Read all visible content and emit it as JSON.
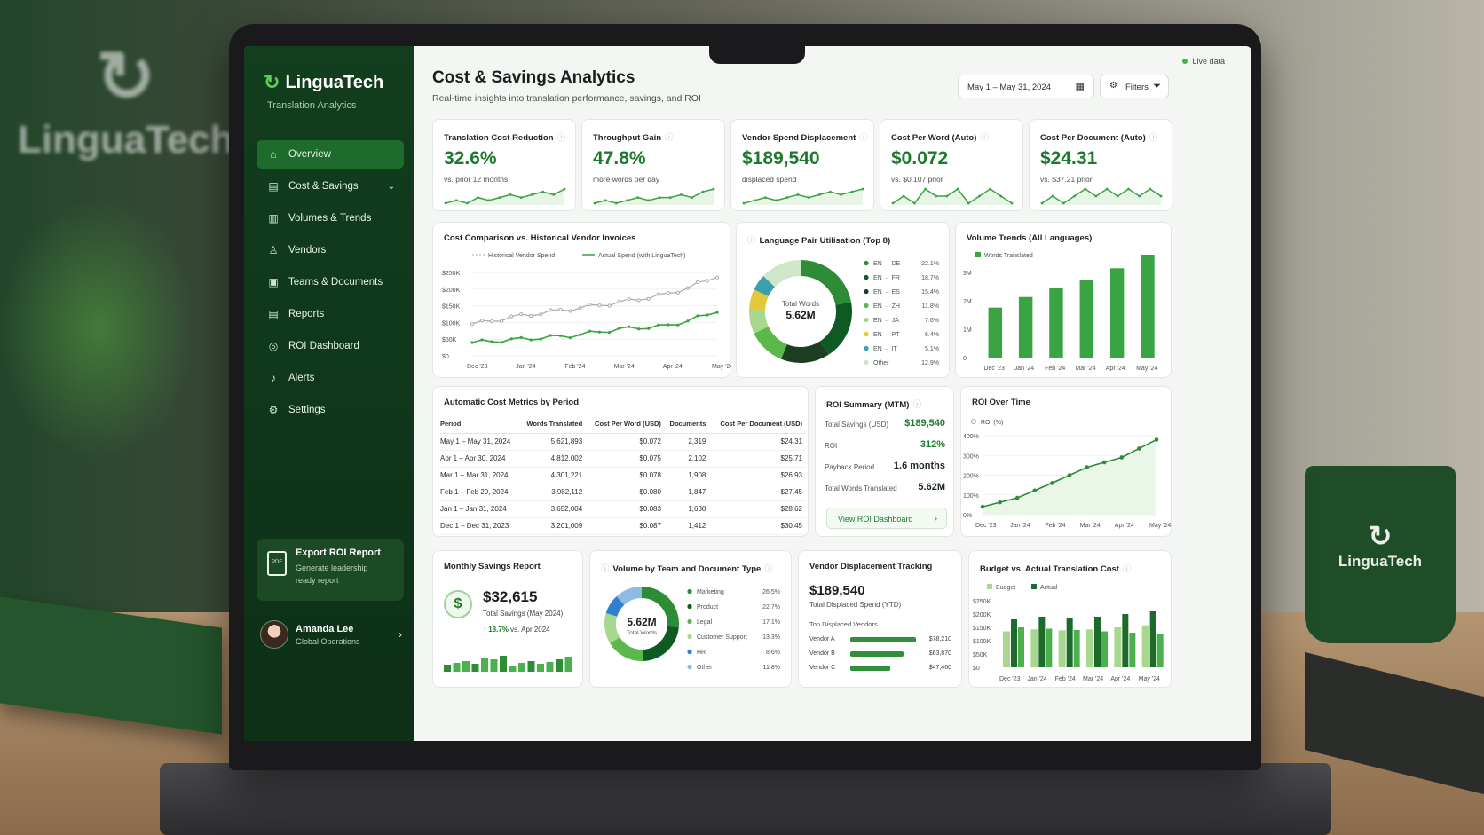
{
  "scene": {
    "wall_logo": "LinguaTech",
    "mug_logo": "LinguaTech"
  },
  "colors": {
    "brand_green": "#1d7a2d",
    "sidebar": "#123e1d",
    "accent_light": "#5fcf5a",
    "grey_series": "#a8aca8"
  },
  "sidebar": {
    "brand": "LinguaTech",
    "brand_sub": "Translation Analytics",
    "items": [
      {
        "label": "Overview",
        "icon": "home-icon",
        "active": true
      },
      {
        "label": "Cost & Savings",
        "icon": "document-icon",
        "has_chevron": true
      },
      {
        "label": "Volumes & Trends",
        "icon": "bar-chart-icon"
      },
      {
        "label": "Vendors",
        "icon": "users-icon"
      },
      {
        "label": "Teams & Documents",
        "icon": "folder-icon"
      },
      {
        "label": "Reports",
        "icon": "report-icon"
      },
      {
        "label": "ROI Dashboard",
        "icon": "roi-icon"
      },
      {
        "label": "Alerts",
        "icon": "bell-icon"
      },
      {
        "label": "Settings",
        "icon": "gear-icon"
      }
    ],
    "export": {
      "title": "Export ROI Report",
      "line1": "Generate leadership",
      "line2": "ready report",
      "icon_text": "PDF"
    },
    "user": {
      "name": "Amanda Lee",
      "role": "Global Operations"
    }
  },
  "header": {
    "title": "Cost & Savings Analytics",
    "subtitle": "Real-time insights into translation performance, savings, and ROI",
    "live": "Live data",
    "date_range": "May 1 – May 31, 2024",
    "filters": "Filters"
  },
  "kpis": [
    {
      "title": "Translation Cost Reduction",
      "value": "32.6%",
      "note": "vs. prior 12 months",
      "trend": [
        3,
        4,
        3,
        5,
        4,
        5,
        6,
        5,
        6,
        7,
        6,
        8
      ]
    },
    {
      "title": "Throughput Gain",
      "value": "47.8%",
      "note": "more words per day",
      "trend": [
        3,
        4,
        3,
        4,
        5,
        4,
        5,
        5,
        6,
        5,
        7,
        8
      ]
    },
    {
      "title": "Vendor Spend Displacement",
      "value": "$189,540",
      "note": "displaced spend",
      "trend": [
        3,
        4,
        5,
        4,
        5,
        6,
        5,
        6,
        7,
        6,
        7,
        8
      ]
    },
    {
      "title": "Cost Per Word (Auto)",
      "value": "$0.072",
      "note": "vs. $0.107 prior",
      "trend": [
        4,
        5,
        4,
        6,
        5,
        5,
        6,
        4,
        5,
        6,
        5,
        4
      ]
    },
    {
      "title": "Cost Per Document (Auto)",
      "value": "$24.31",
      "note": "vs. $37.21 prior",
      "trend": [
        4,
        5,
        4,
        5,
        6,
        5,
        6,
        5,
        6,
        5,
        6,
        5
      ]
    }
  ],
  "cost_chart": {
    "title": "Cost Comparison vs. Historical Vendor Invoices",
    "legend_hist": "Historical Vendor Spend",
    "legend_actual": "Actual Spend (with LinguaTech)",
    "y_ticks": [
      "$250K",
      "$200K",
      "$150K",
      "$100K",
      "$50K",
      "$0"
    ],
    "x_ticks": [
      "Dec '23",
      "Jan '24",
      "Feb '24",
      "Mar '24",
      "Apr '24",
      "May '24"
    ]
  },
  "language_pairs": {
    "title": "Language Pair Utilisation (Top 8)",
    "center_label": "Total Words",
    "center_value": "5.62M",
    "items": [
      {
        "label": "EN → DE",
        "pct": "22.1%",
        "color": "#2e8b36"
      },
      {
        "label": "EN → FR",
        "pct": "18.7%",
        "color": "#0f5a22"
      },
      {
        "label": "EN → ES",
        "pct": "15.4%",
        "color": "#1e3e24"
      },
      {
        "label": "EN → ZH",
        "pct": "11.8%",
        "color": "#5cb84a"
      },
      {
        "label": "EN → JA",
        "pct": "7.6%",
        "color": "#a8d88f"
      },
      {
        "label": "EN → PT",
        "pct": "6.4%",
        "color": "#e3c93a"
      },
      {
        "label": "EN → IT",
        "pct": "5.1%",
        "color": "#3c9fb0"
      },
      {
        "label": "Other",
        "pct": "12.9%",
        "color": "#cfe6c8"
      }
    ]
  },
  "volume_chart": {
    "title": "Volume Trends (All Languages)",
    "legend": "Words Translated",
    "y_ticks": [
      "3M",
      "2M",
      "1M",
      "0"
    ],
    "x_ticks": [
      "Dec '23",
      "Jan '24",
      "Feb '24",
      "Mar '24",
      "Apr '24",
      "May '24"
    ]
  },
  "metrics_table": {
    "title": "Automatic Cost Metrics by Period",
    "columns": [
      "Period",
      "Words Translated",
      "Cost Per Word (USD)",
      "Documents",
      "Cost Per Document (USD)"
    ],
    "rows": [
      [
        "May 1 – May 31, 2024",
        "5,621,893",
        "$0.072",
        "2,319",
        "$24.31"
      ],
      [
        "Apr 1 – Apr 30, 2024",
        "4,812,002",
        "$0.075",
        "2,102",
        "$25.71"
      ],
      [
        "Mar 1 – Mar 31, 2024",
        "4,301,221",
        "$0.078",
        "1,908",
        "$26.93"
      ],
      [
        "Feb 1 – Feb 29, 2024",
        "3,982,112",
        "$0.080",
        "1,847",
        "$27.45"
      ],
      [
        "Jan 1 – Jan 31, 2024",
        "3,652,004",
        "$0.083",
        "1,630",
        "$28.62"
      ],
      [
        "Dec 1 – Dec 31, 2023",
        "3,201,009",
        "$0.087",
        "1,412",
        "$30.45"
      ]
    ]
  },
  "roi_summary": {
    "title": "ROI Summary (MTM)",
    "rows": [
      {
        "label": "Total Savings (USD)",
        "value": "$189,540"
      },
      {
        "label": "ROI",
        "value": "312%"
      },
      {
        "label": "Payback Period",
        "value": "1.6 months"
      },
      {
        "label": "Total Words Translated",
        "value": "5.62M"
      }
    ],
    "button": "View ROI Dashboard"
  },
  "roi_time": {
    "title": "ROI Over Time",
    "legend": "ROI (%)",
    "y_ticks": [
      "400%",
      "300%",
      "200%",
      "100%",
      "0%"
    ],
    "x_ticks": [
      "Dec '23",
      "Jan '24",
      "Feb '24",
      "Mar '24",
      "Apr '24",
      "May '24"
    ]
  },
  "monthly_savings": {
    "title": "Monthly Savings Report",
    "icon": "$",
    "value": "$32,615",
    "sub": "Total Savings (May 2024)",
    "change": "18.7%",
    "change_suffix": "vs. Apr 2024"
  },
  "team_volume": {
    "title": "Volume by Team and Document Type",
    "center_value": "5.62M",
    "center_label": "Total Words",
    "items": [
      {
        "label": "Marketing",
        "pct": "26.5%",
        "color": "#2e8b36"
      },
      {
        "label": "Product",
        "pct": "22.7%",
        "color": "#0f5a22"
      },
      {
        "label": "Legal",
        "pct": "17.1%",
        "color": "#5cb84a"
      },
      {
        "label": "Customer Support",
        "pct": "13.3%",
        "color": "#a8d88f"
      },
      {
        "label": "HR",
        "pct": "8.6%",
        "color": "#2f7fd1"
      },
      {
        "label": "Other",
        "pct": "11.8%",
        "color": "#8fb9e6"
      }
    ]
  },
  "vendor_displacement": {
    "title": "Vendor Displacement Tracking",
    "value": "$189,540",
    "sub": "Total Displaced Spend (YTD)",
    "top_label": "Top Displaced Vendors",
    "vendors": [
      {
        "name": "Vendor A",
        "amount": "$78,210",
        "value": 78210
      },
      {
        "name": "Vendor B",
        "amount": "$63,870",
        "value": 63870
      },
      {
        "name": "Vendor C",
        "amount": "$47,460",
        "value": 47460
      }
    ]
  },
  "budget_chart": {
    "title": "Budget vs. Actual Translation Cost",
    "legend_budget": "Budget",
    "legend_actual": "Actual",
    "y_ticks": [
      "$250K",
      "$200K",
      "$150K",
      "$100K",
      "$50K",
      "$0"
    ],
    "x_ticks": [
      "Dec '23",
      "Jan '24",
      "Feb '24",
      "Mar '24",
      "Apr '24",
      "May '24"
    ]
  },
  "chart_data": [
    {
      "type": "line",
      "title": "Cost Comparison vs. Historical Vendor Invoices",
      "x": [
        "Dec '23",
        "Jan '24",
        "Feb '24",
        "Mar '24",
        "Apr '24",
        "May '24"
      ],
      "series": [
        {
          "name": "Historical Vendor Spend",
          "values": [
            95000,
            120000,
            140000,
            160000,
            185000,
            235000
          ]
        },
        {
          "name": "Actual Spend (with LinguaTech)",
          "values": [
            40000,
            50000,
            60000,
            80000,
            90000,
            130000
          ]
        }
      ],
      "ylim": [
        0,
        250000
      ]
    },
    {
      "type": "pie",
      "title": "Language Pair Utilisation (Top 8)",
      "categories": [
        "EN → DE",
        "EN → FR",
        "EN → ES",
        "EN → ZH",
        "EN → JA",
        "EN → PT",
        "EN → IT",
        "Other"
      ],
      "values": [
        22.1,
        18.7,
        15.4,
        11.8,
        7.6,
        6.4,
        5.1,
        12.9
      ]
    },
    {
      "type": "bar",
      "title": "Volume Trends (All Languages)",
      "categories": [
        "Dec '23",
        "Jan '24",
        "Feb '24",
        "Mar '24",
        "Apr '24",
        "May '24"
      ],
      "series": [
        {
          "name": "Words Translated",
          "values": [
            3201009,
            3652004,
            3982112,
            4301221,
            4812002,
            5621893
          ]
        }
      ],
      "y_display_max": 3000000
    },
    {
      "type": "line",
      "title": "ROI Over Time",
      "x": [
        "Dec '23",
        "Jan '24",
        "Feb '24",
        "Mar '24",
        "Apr '24",
        "May '24"
      ],
      "series": [
        {
          "name": "ROI (%)",
          "values": [
            40,
            85,
            160,
            240,
            290,
            380
          ]
        }
      ],
      "ylim": [
        0,
        400
      ]
    },
    {
      "type": "bar",
      "title": "Monthly Savings Report",
      "values": [
        8,
        10,
        12,
        9,
        16,
        14,
        18,
        7,
        10,
        12,
        9,
        11,
        14,
        17
      ]
    },
    {
      "type": "pie",
      "title": "Volume by Team and Document Type",
      "categories": [
        "Marketing",
        "Product",
        "Legal",
        "Customer Support",
        "HR",
        "Other"
      ],
      "values": [
        26.5,
        22.7,
        17.1,
        13.3,
        8.6,
        11.8
      ]
    },
    {
      "type": "bar",
      "title": "Budget vs. Actual Translation Cost",
      "categories": [
        "Dec '23",
        "Jan '24",
        "Feb '24",
        "Mar '24",
        "Apr '24",
        "May '24"
      ],
      "series": [
        {
          "name": "Budget",
          "values": [
            180000,
            190000,
            185000,
            190000,
            200000,
            210000
          ]
        },
        {
          "name": "Actual",
          "values": [
            150000,
            145000,
            140000,
            135000,
            130000,
            125000
          ]
        }
      ],
      "ylim": [
        0,
        250000
      ]
    }
  ]
}
